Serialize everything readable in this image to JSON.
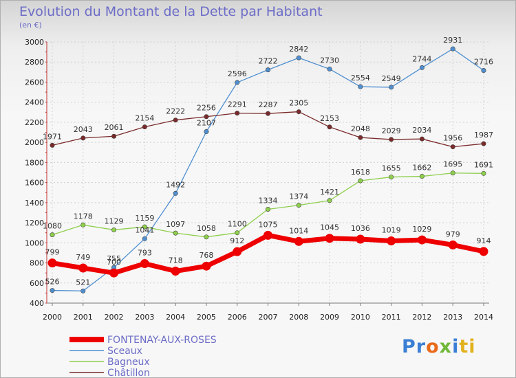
{
  "chart_data": {
    "type": "line",
    "title": "Evolution du Montant de la Dette par Habitant",
    "subtitle": "(en €)",
    "x": [
      "2000",
      "2001",
      "2002",
      "2003",
      "2004",
      "2005",
      "2006",
      "2007",
      "2008",
      "2009",
      "2010",
      "2011",
      "2012",
      "2013",
      "2014"
    ],
    "ylim": [
      400,
      3000
    ],
    "yticks": [
      400,
      600,
      800,
      1000,
      1200,
      1400,
      1600,
      1800,
      2000,
      2200,
      2400,
      2600,
      2800,
      3000
    ],
    "grid": true,
    "legend_position": "bottom-left",
    "series": [
      {
        "name": "FONTENAY-AUX-ROSES",
        "color": "#ee0000",
        "values": [
          799,
          749,
          700,
          793,
          718,
          768,
          912,
          1075,
          1014,
          1045,
          1036,
          1019,
          1029,
          979,
          914
        ]
      },
      {
        "name": "Sceaux",
        "color": "#4f8fd0",
        "values": [
          526,
          521,
          755,
          1041,
          1492,
          2107,
          2596,
          2722,
          2842,
          2730,
          2554,
          2549,
          2744,
          2931,
          2716
        ]
      },
      {
        "name": "Bagneux",
        "color": "#8ecf4c",
        "values": [
          1080,
          1178,
          1129,
          1159,
          1097,
          1058,
          1100,
          1334,
          1374,
          1421,
          1618,
          1655,
          1662,
          1695,
          1691
        ]
      },
      {
        "name": "Châtillon",
        "color": "#7a2a2a",
        "values": [
          1971,
          2043,
          2061,
          2154,
          2222,
          2256,
          2291,
          2287,
          2305,
          2153,
          2048,
          2029,
          2034,
          1956,
          1987
        ]
      }
    ]
  },
  "logo": {
    "parts": [
      {
        "text": "Pr",
        "color": "#3b7fd4"
      },
      {
        "text": "o",
        "color": "#e86a1a"
      },
      {
        "text": "x",
        "color": "#6fb83a"
      },
      {
        "text": "i",
        "color": "#3b7fd4"
      },
      {
        "text": "ti",
        "color": "#e2b21e"
      }
    ]
  }
}
